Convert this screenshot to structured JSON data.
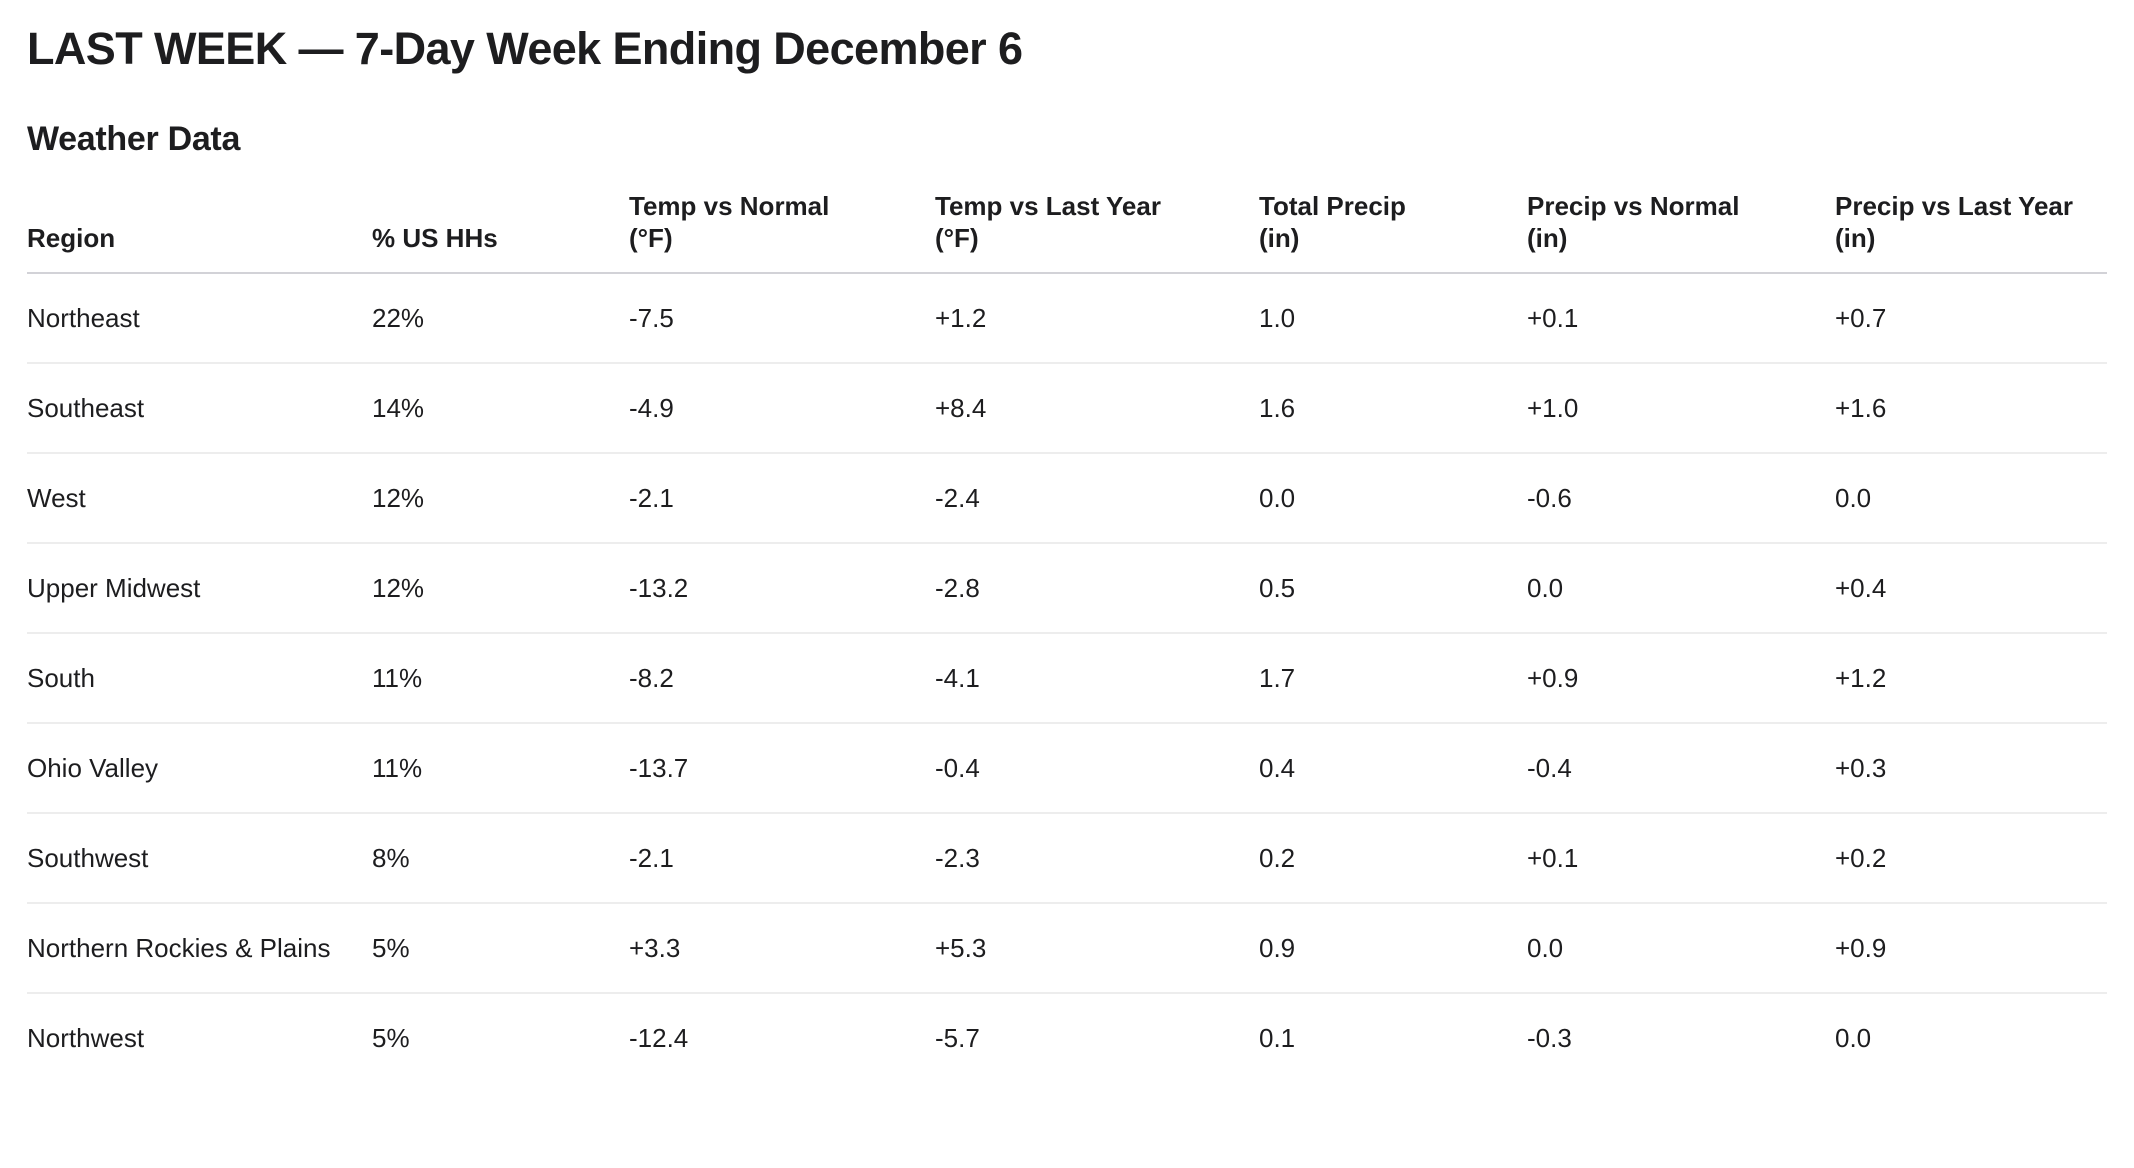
{
  "page": {
    "title": "LAST WEEK — 7-Day Week Ending December 6",
    "section_title": "Weather Data"
  },
  "table": {
    "columns": [
      {
        "label": "Region",
        "unit": ""
      },
      {
        "label": "% US HHs",
        "unit": ""
      },
      {
        "label": "Temp vs Normal",
        "unit": "(°F)"
      },
      {
        "label": "Temp vs Last Year",
        "unit": "(°F)"
      },
      {
        "label": "Total Precip",
        "unit": "(in)"
      },
      {
        "label": "Precip vs Normal",
        "unit": "(in)"
      },
      {
        "label": "Precip vs Last Year",
        "unit": "(in)"
      }
    ],
    "rows": [
      {
        "region": "Northeast",
        "values": [
          "22%",
          "-7.5",
          "+1.2",
          "1.0",
          "+0.1",
          "+0.7"
        ]
      },
      {
        "region": "Southeast",
        "values": [
          "14%",
          "-4.9",
          "+8.4",
          "1.6",
          "+1.0",
          "+1.6"
        ]
      },
      {
        "region": "West",
        "values": [
          "12%",
          "-2.1",
          "-2.4",
          "0.0",
          "-0.6",
          "0.0"
        ]
      },
      {
        "region": "Upper Midwest",
        "values": [
          "12%",
          "-13.2",
          "-2.8",
          "0.5",
          "0.0",
          "+0.4"
        ]
      },
      {
        "region": "South",
        "values": [
          "11%",
          "-8.2",
          "-4.1",
          "1.7",
          "+0.9",
          "+1.2"
        ]
      },
      {
        "region": "Ohio Valley",
        "values": [
          "11%",
          "-13.7",
          "-0.4",
          "0.4",
          "-0.4",
          "+0.3"
        ]
      },
      {
        "region": "Southwest",
        "values": [
          "8%",
          "-2.1",
          "-2.3",
          "0.2",
          "+0.1",
          "+0.2"
        ]
      },
      {
        "region": "Northern Rockies & Plains",
        "values": [
          "5%",
          "+3.3",
          "+5.3",
          "0.9",
          "0.0",
          "+0.9"
        ]
      },
      {
        "region": "Northwest",
        "values": [
          "5%",
          "-12.4",
          "-5.7",
          "0.1",
          "-0.3",
          "0.0"
        ]
      }
    ]
  },
  "colors": {
    "background": "#ffffff",
    "text": "#1d1d1f",
    "header_border": "#d2d2d7",
    "row_border": "#ededed"
  }
}
